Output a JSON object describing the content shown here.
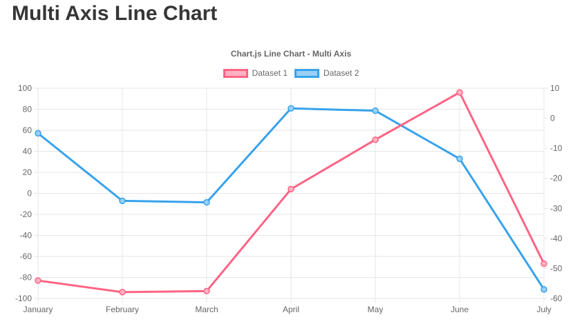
{
  "page": {
    "title": "Multi Axis Line Chart"
  },
  "chart_data": {
    "type": "line",
    "title": "Chart.js Line Chart - Multi Axis",
    "categories": [
      "January",
      "February",
      "March",
      "April",
      "May",
      "June",
      "July"
    ],
    "series": [
      {
        "name": "Dataset 1",
        "axis": "left",
        "line_color": "#ff6384",
        "point_fill": "#ffb1c1",
        "values": [
          -83,
          -94,
          -93,
          4,
          51,
          96,
          -67
        ]
      },
      {
        "name": "Dataset 2",
        "axis": "right",
        "line_color": "#36a2eb",
        "point_fill": "#9bd0f5",
        "values": [
          -5,
          -27.5,
          -28,
          3.3,
          2.5,
          -13.5,
          -57
        ]
      }
    ],
    "axes": {
      "left": {
        "min": -100,
        "max": 100,
        "step": 20
      },
      "right": {
        "min": -60,
        "max": 10,
        "step": 10
      }
    },
    "grid": true,
    "legend_position": "top",
    "text_color": "#666666",
    "grid_color": "#e5e5e5"
  }
}
